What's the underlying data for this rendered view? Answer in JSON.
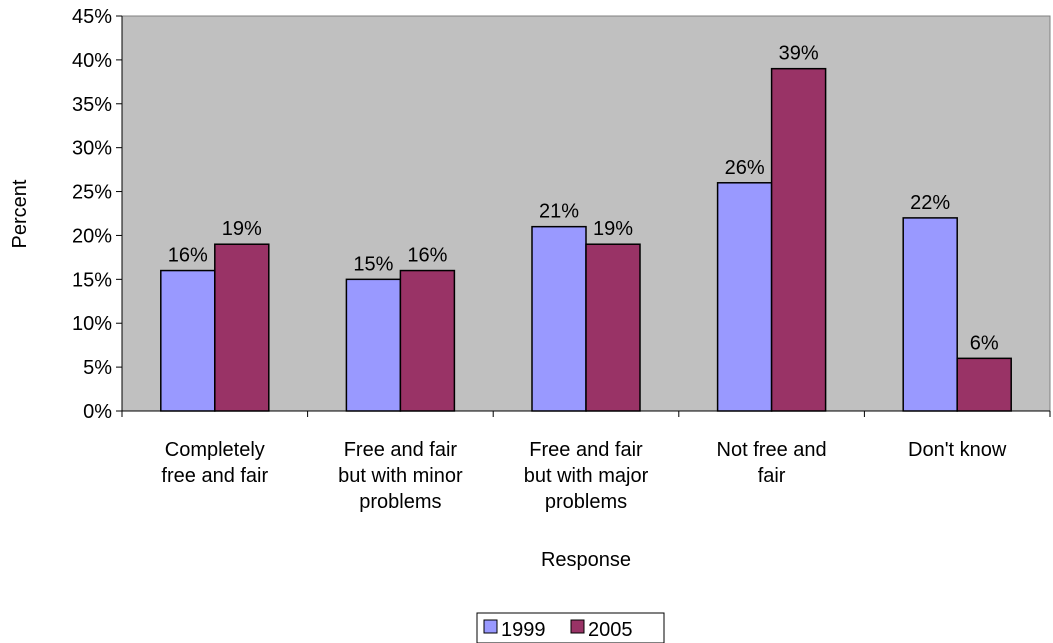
{
  "chart_data": {
    "type": "bar",
    "title": "",
    "xlabel": "Response",
    "ylabel": "Percent",
    "ylim": [
      0,
      45
    ],
    "y_ticks": [
      "0%",
      "5%",
      "10%",
      "15%",
      "20%",
      "25%",
      "30%",
      "35%",
      "40%",
      "45%"
    ],
    "categories": [
      [
        "Completely",
        "free and fair"
      ],
      [
        "Free and fair",
        "but with minor",
        "problems"
      ],
      [
        "Free and fair",
        "but with major",
        "problems"
      ],
      [
        "Not free and",
        "fair"
      ],
      [
        "Don't know"
      ]
    ],
    "series": [
      {
        "name": "1999",
        "color": "#9999FF",
        "values": [
          16,
          15,
          21,
          26,
          22
        ],
        "labels": [
          "16%",
          "15%",
          "21%",
          "26%",
          "22%"
        ]
      },
      {
        "name": "2005",
        "color": "#993366",
        "values": [
          19,
          16,
          19,
          39,
          6
        ],
        "labels": [
          "19%",
          "16%",
          "19%",
          "39%",
          "6%"
        ]
      }
    ],
    "plot_background": "#C0C0C0",
    "grid": false,
    "legend": "bottom"
  }
}
